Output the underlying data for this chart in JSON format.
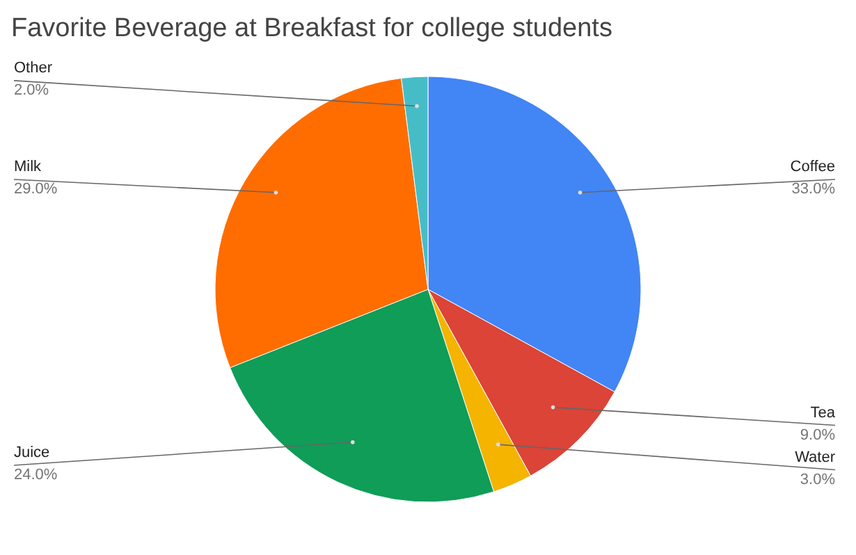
{
  "chart_data": {
    "type": "pie",
    "title": "Favorite Beverage at Breakfast for college students",
    "categories": [
      "Coffee",
      "Tea",
      "Water",
      "Juice",
      "Milk",
      "Other"
    ],
    "values": [
      33,
      9,
      3,
      24,
      29,
      2
    ],
    "colors": [
      "#4285f4",
      "#db4437",
      "#f4b400",
      "#0f9d58",
      "#ff6d01",
      "#46bdc6"
    ],
    "value_labels": [
      "33.0%",
      "9.0%",
      "3.0%",
      "24.0%",
      "29.0%",
      "2.0%"
    ]
  }
}
